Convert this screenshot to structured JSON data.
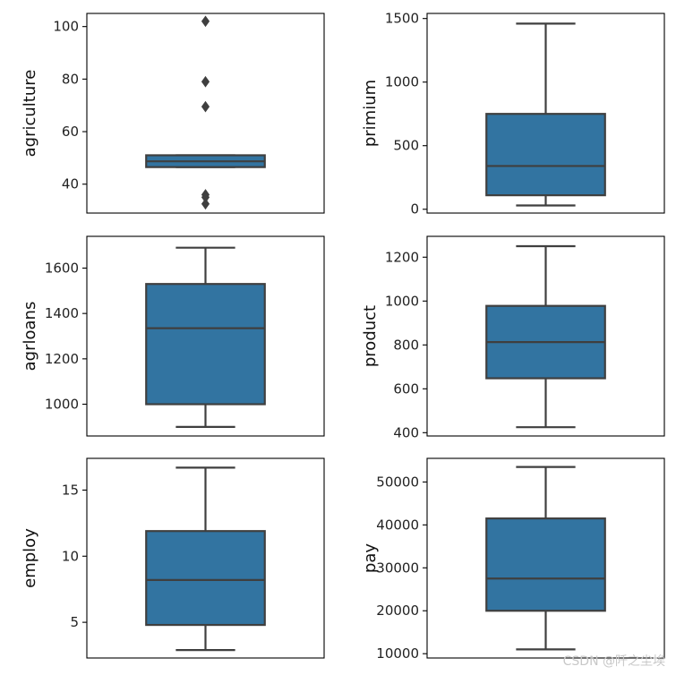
{
  "chart_data": [
    {
      "type": "box",
      "ylabel": "agriculture",
      "ylim": [
        29,
        105
      ],
      "yticks": [
        40,
        60,
        80,
        100
      ],
      "box": {
        "whisker_low": 46.5,
        "q1": 46.5,
        "median": 48.7,
        "q3": 51.0,
        "whisker_high": 51.0
      },
      "outliers": [
        102,
        79,
        69.5,
        36,
        35,
        32.5
      ]
    },
    {
      "type": "box",
      "ylabel": "primium",
      "ylim": [
        -30,
        1540
      ],
      "yticks": [
        0,
        500,
        1000,
        1500
      ],
      "box": {
        "whisker_low": 30,
        "q1": 110,
        "median": 340,
        "q3": 750,
        "whisker_high": 1460
      },
      "outliers": []
    },
    {
      "type": "box",
      "ylabel": "agrloans",
      "ylim": [
        860,
        1740
      ],
      "yticks": [
        1000,
        1200,
        1400,
        1600
      ],
      "box": {
        "whisker_low": 900,
        "q1": 1000,
        "median": 1335,
        "q3": 1530,
        "whisker_high": 1690
      },
      "outliers": []
    },
    {
      "type": "box",
      "ylabel": "product",
      "ylim": [
        385,
        1295
      ],
      "yticks": [
        400,
        600,
        800,
        1000,
        1200
      ],
      "box": {
        "whisker_low": 425,
        "q1": 648,
        "median": 813,
        "q3": 978,
        "whisker_high": 1250
      },
      "outliers": []
    },
    {
      "type": "box",
      "ylabel": "employ",
      "ylim": [
        2.3,
        17.4
      ],
      "yticks": [
        5,
        10,
        15
      ],
      "box": {
        "whisker_low": 2.9,
        "q1": 4.8,
        "median": 8.2,
        "q3": 11.9,
        "whisker_high": 16.7
      },
      "outliers": []
    },
    {
      "type": "box",
      "ylabel": "pay",
      "ylim": [
        9000,
        55500
      ],
      "yticks": [
        10000,
        20000,
        30000,
        40000,
        50000
      ],
      "box": {
        "whisker_low": 11000,
        "q1": 20000,
        "median": 27500,
        "q3": 41500,
        "whisker_high": 53500
      },
      "outliers": []
    }
  ],
  "colors": {
    "box_fill": "#3274a1",
    "line": "#3f3f3f",
    "axes": "#000000"
  },
  "watermark": "CSDN @阡之尘埃"
}
